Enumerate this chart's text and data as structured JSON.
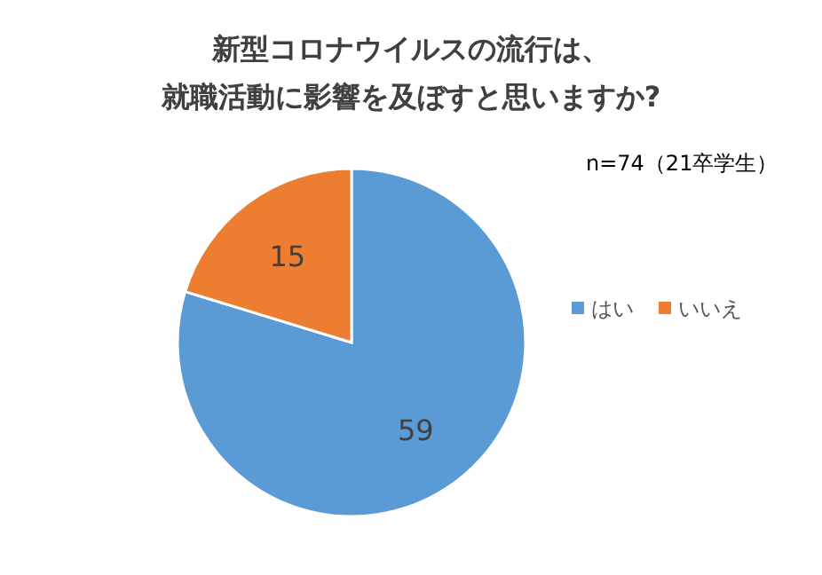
{
  "chart_data": {
    "type": "pie",
    "title": "新型コロナウイルスの流行は、就職活動に影響を及ぼすと思いますか?",
    "categories": [
      "はい",
      "いいえ"
    ],
    "values": [
      59,
      15
    ],
    "colors": [
      "#5b9bd5",
      "#ed7d31"
    ],
    "data_labels": true,
    "legend": "right",
    "annotations": [
      "n=74（21卒学生）"
    ]
  }
}
